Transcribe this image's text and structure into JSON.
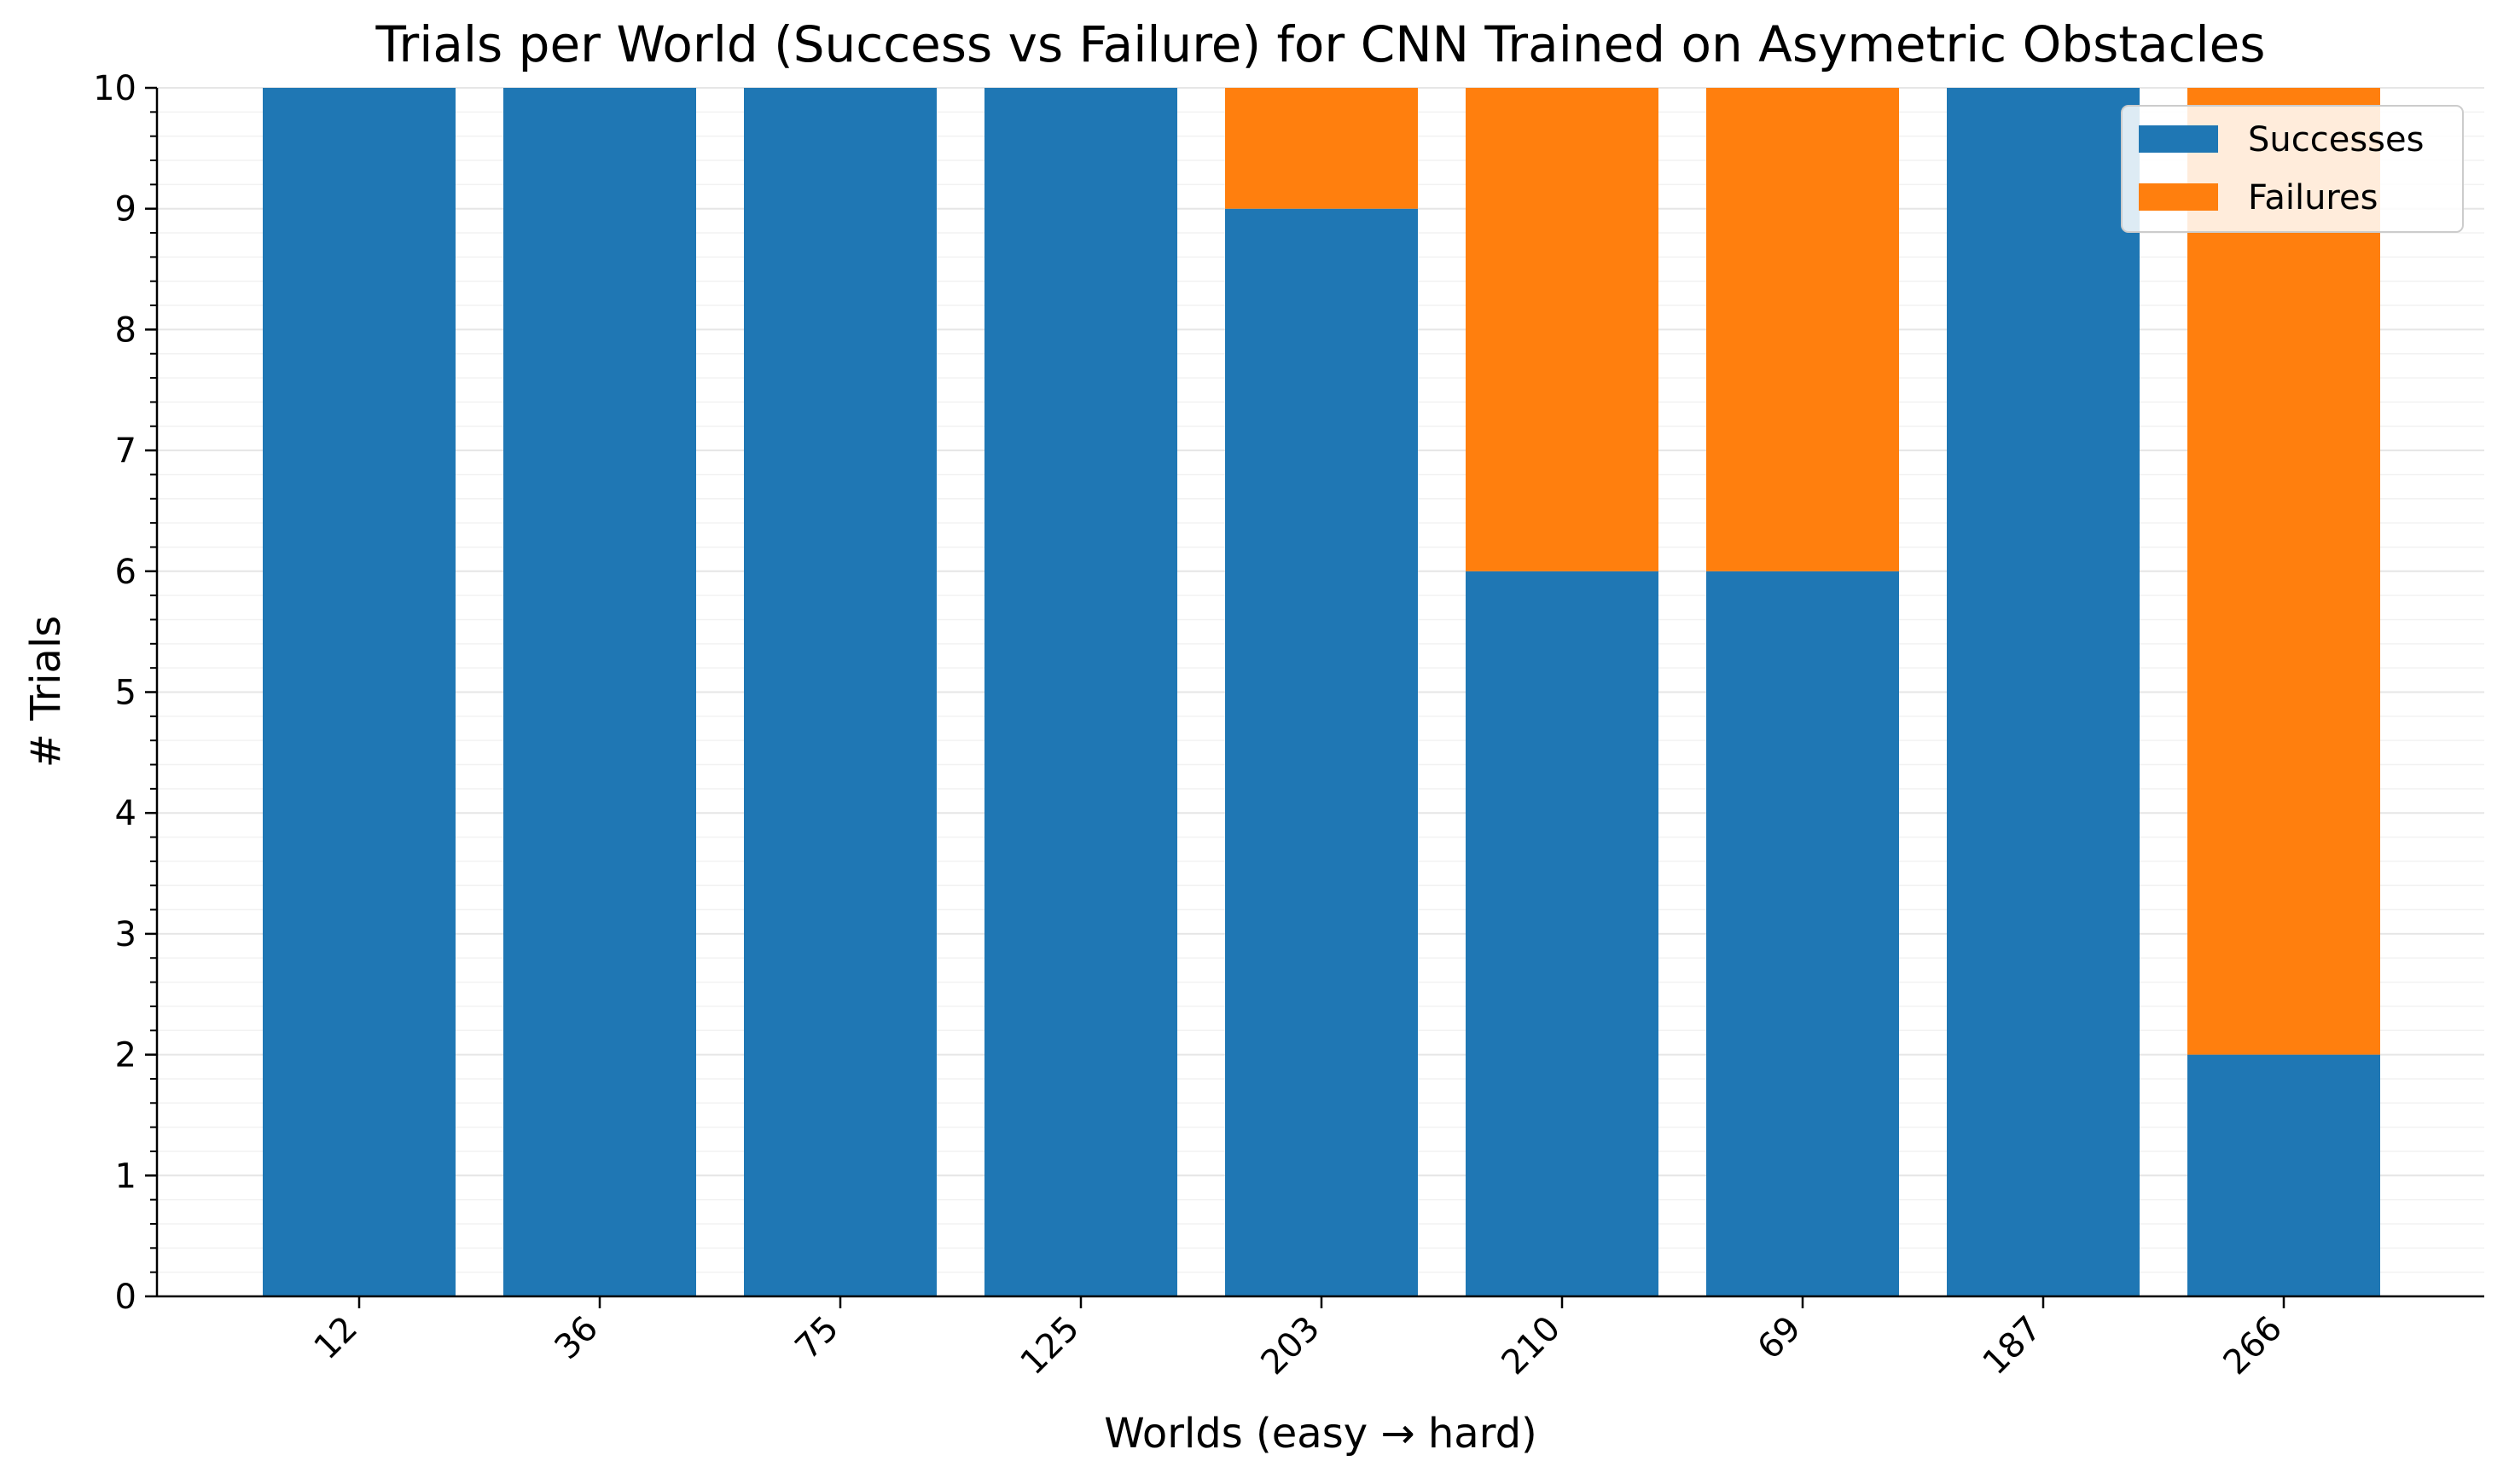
{
  "chart_data": {
    "type": "bar",
    "stacked": true,
    "title": "Trials per World (Success vs Failure) for CNN Trained on Asymetric Obstacles",
    "xlabel": "Worlds (easy → hard)",
    "ylabel": "# Trials",
    "categories": [
      "12",
      "36",
      "75",
      "125",
      "203",
      "210",
      "69",
      "187",
      "266"
    ],
    "series": [
      {
        "name": "Successes",
        "color": "#1f77b4",
        "values": [
          10,
          10,
          10,
          10,
          9,
          6,
          6,
          10,
          2
        ]
      },
      {
        "name": "Failures",
        "color": "#ff7f0e",
        "values": [
          0,
          0,
          0,
          0,
          1,
          4,
          4,
          0,
          8
        ]
      }
    ],
    "ylim": [
      0,
      10
    ],
    "yticks": [
      "0",
      "1",
      "2",
      "3",
      "4",
      "5",
      "6",
      "7",
      "8",
      "9",
      "10"
    ],
    "grid": true,
    "legend_position": "top-right"
  }
}
